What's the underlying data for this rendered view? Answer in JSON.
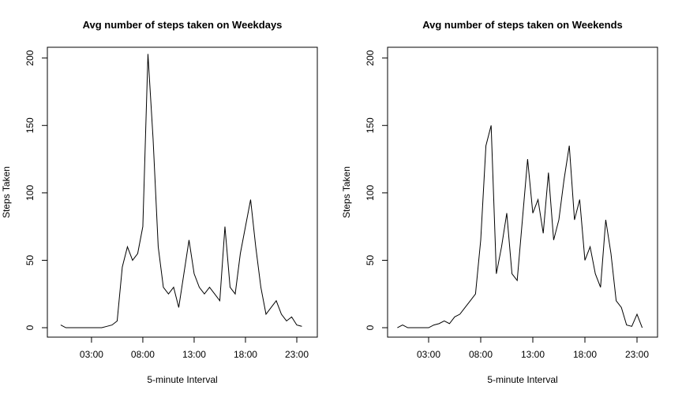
{
  "chart_data": [
    {
      "type": "line",
      "title": "Avg number of steps taken on Weekdays",
      "x_label": "5-minute Interval",
      "y_label": "Steps Taken",
      "color": "#000000",
      "x": [
        0,
        0.5,
        1,
        1.5,
        2,
        2.5,
        3,
        3.5,
        4,
        4.5,
        5,
        5.5,
        6,
        6.5,
        7,
        7.5,
        8,
        8.5,
        9,
        9.5,
        10,
        10.5,
        11,
        11.5,
        12,
        12.5,
        13,
        13.5,
        14,
        14.5,
        15,
        15.5,
        16,
        16.5,
        17,
        17.5,
        18,
        18.5,
        19,
        19.5,
        20,
        20.5,
        21,
        21.5,
        22,
        22.5,
        23,
        23.5
      ],
      "values": [
        2,
        0,
        0,
        0,
        0,
        0,
        0,
        0,
        0,
        1,
        2,
        5,
        45,
        60,
        50,
        55,
        75,
        203,
        140,
        60,
        30,
        25,
        30,
        15,
        40,
        65,
        40,
        30,
        25,
        30,
        25,
        20,
        75,
        30,
        25,
        55,
        75,
        95,
        60,
        30,
        10,
        15,
        20,
        10,
        5,
        8,
        2,
        1
      ],
      "xlim": [
        -1.3,
        25
      ],
      "ylim": [
        -7,
        208
      ],
      "xticks": [
        {
          "value": 3,
          "label": "03:00"
        },
        {
          "value": 8,
          "label": "08:00"
        },
        {
          "value": 13,
          "label": "13:00"
        },
        {
          "value": 18,
          "label": "18:00"
        },
        {
          "value": 23,
          "label": "23:00"
        }
      ],
      "yticks": [
        0,
        50,
        100,
        150,
        200
      ]
    },
    {
      "type": "line",
      "title": "Avg number of steps taken on Weekends",
      "x_label": "5-minute Interval",
      "y_label": "Steps Taken",
      "color": "#000000",
      "x": [
        0,
        0.5,
        1,
        1.5,
        2,
        2.5,
        3,
        3.5,
        4,
        4.5,
        5,
        5.5,
        6,
        6.5,
        7,
        7.5,
        8,
        8.5,
        9,
        9.5,
        10,
        10.5,
        11,
        11.5,
        12,
        12.5,
        13,
        13.5,
        14,
        14.5,
        15,
        15.5,
        16,
        16.5,
        17,
        17.5,
        18,
        18.5,
        19,
        19.5,
        20,
        20.5,
        21,
        21.5,
        22,
        22.5,
        23,
        23.5
      ],
      "values": [
        0,
        2,
        0,
        0,
        0,
        0,
        0,
        2,
        3,
        5,
        3,
        8,
        10,
        15,
        20,
        25,
        65,
        135,
        150,
        40,
        60,
        85,
        40,
        35,
        80,
        125,
        85,
        95,
        70,
        115,
        65,
        80,
        110,
        135,
        80,
        95,
        50,
        60,
        40,
        30,
        80,
        55,
        20,
        15,
        2,
        1,
        10,
        0
      ],
      "xlim": [
        -0.94,
        24.97
      ],
      "ylim": [
        -7,
        208
      ],
      "xticks": [
        {
          "value": 3,
          "label": "03:00"
        },
        {
          "value": 8,
          "label": "08:00"
        },
        {
          "value": 13,
          "label": "13:00"
        },
        {
          "value": 18,
          "label": "18:00"
        },
        {
          "value": 23,
          "label": "23:00"
        }
      ],
      "yticks": [
        0,
        50,
        100,
        150,
        200
      ]
    }
  ]
}
